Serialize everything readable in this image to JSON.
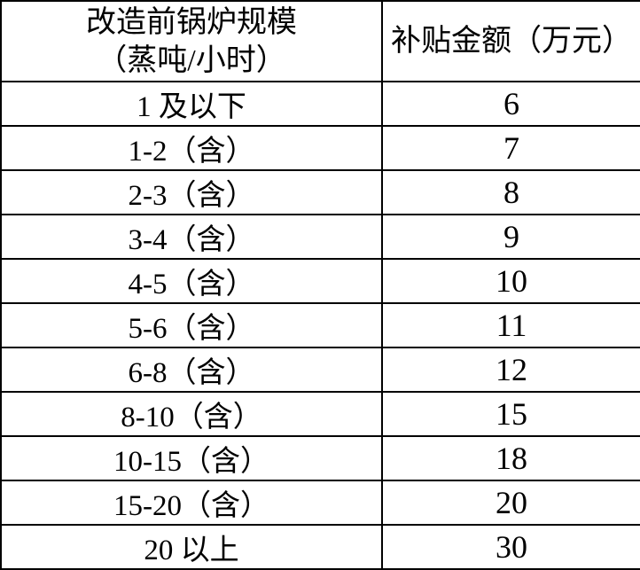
{
  "colors": {
    "border": "#000000",
    "text": "#000000",
    "background": "#ffffff"
  },
  "table": {
    "header": {
      "scale_line1": "改造前锅炉规模",
      "scale_line2": "（蒸吨/小时）",
      "amount": "补贴金额（万元）"
    },
    "rows": [
      {
        "scale": "1 及以下",
        "amount": "6"
      },
      {
        "scale": "1-2（含）",
        "amount": "7"
      },
      {
        "scale": "2-3（含）",
        "amount": "8"
      },
      {
        "scale": "3-4（含）",
        "amount": "9"
      },
      {
        "scale": "4-5（含）",
        "amount": "10"
      },
      {
        "scale": "5-6（含）",
        "amount": "11"
      },
      {
        "scale": "6-8（含）",
        "amount": "12"
      },
      {
        "scale": "8-10（含）",
        "amount": "15"
      },
      {
        "scale": "10-15（含）",
        "amount": "18"
      },
      {
        "scale": "15-20（含）",
        "amount": "20"
      },
      {
        "scale": "20 以上",
        "amount": "30"
      }
    ]
  }
}
